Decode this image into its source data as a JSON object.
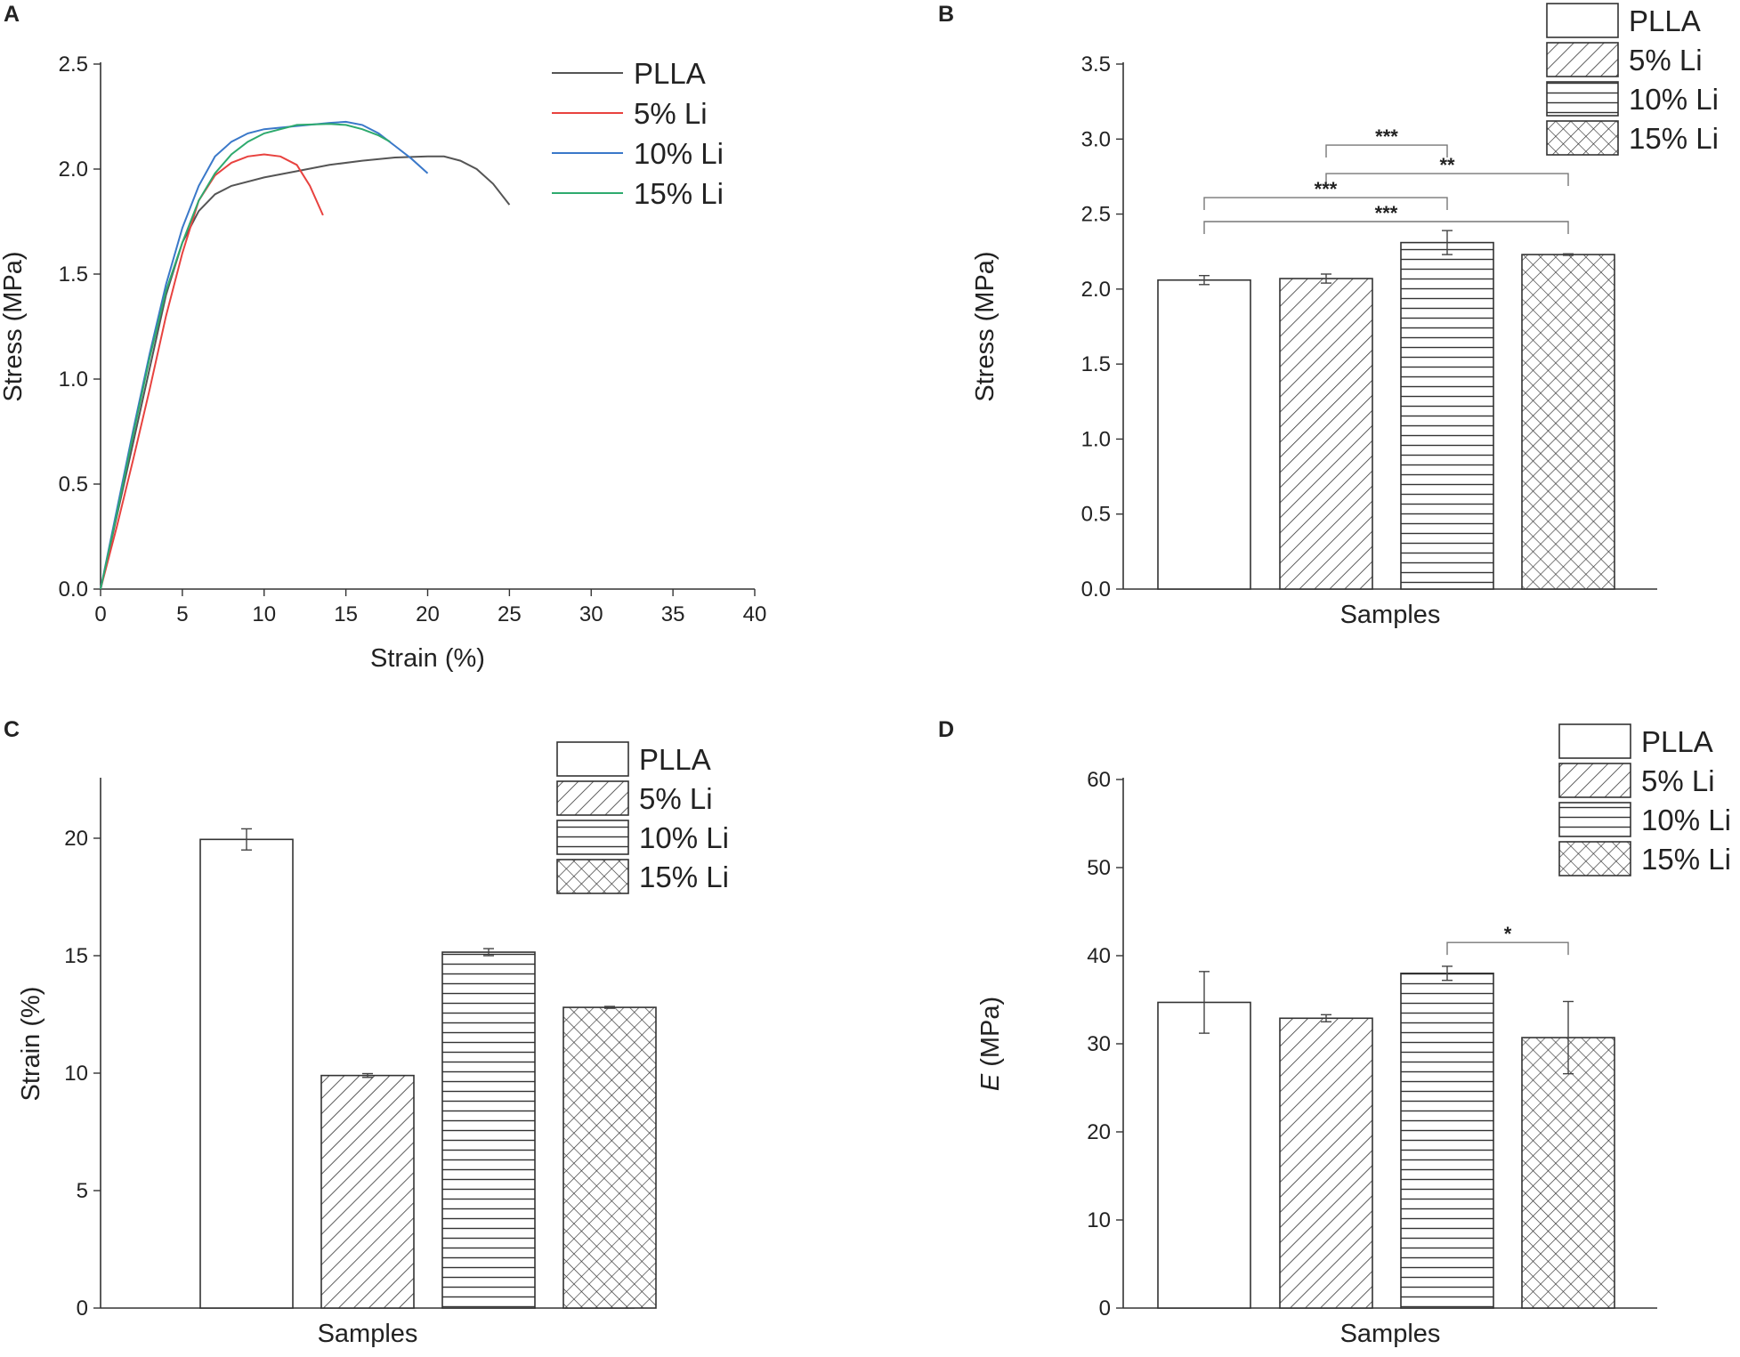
{
  "chart_data": [
    {
      "panel": "A",
      "type": "line",
      "xlabel": "Strain (%)",
      "ylabel": "Stress (MPa)",
      "xlim": [
        0,
        40
      ],
      "ylim": [
        0,
        2.5
      ],
      "xticks": [
        "0",
        "5",
        "10",
        "15",
        "20",
        "25",
        "30",
        "35",
        "40"
      ],
      "yticks": [
        "0.0",
        "0.5",
        "1.0",
        "1.5",
        "2.0",
        "2.5"
      ],
      "legend_position": "top-right",
      "series": [
        {
          "name": "PLLA",
          "color": "#555555",
          "points": [
            [
              0,
              0
            ],
            [
              1,
              0.35
            ],
            [
              2,
              0.7
            ],
            [
              3,
              1.05
            ],
            [
              4,
              1.4
            ],
            [
              5,
              1.65
            ],
            [
              6,
              1.8
            ],
            [
              7,
              1.88
            ],
            [
              8,
              1.92
            ],
            [
              10,
              1.96
            ],
            [
              12,
              1.99
            ],
            [
              14,
              2.02
            ],
            [
              16,
              2.04
            ],
            [
              18,
              2.055
            ],
            [
              20,
              2.06
            ],
            [
              21,
              2.06
            ],
            [
              22,
              2.04
            ],
            [
              23,
              2.0
            ],
            [
              24,
              1.93
            ],
            [
              25,
              1.83
            ]
          ]
        },
        {
          "name": "5% Li",
          "color": "#e8423f",
          "points": [
            [
              0,
              0
            ],
            [
              1,
              0.3
            ],
            [
              2,
              0.62
            ],
            [
              3,
              0.95
            ],
            [
              4,
              1.3
            ],
            [
              5,
              1.6
            ],
            [
              6,
              1.85
            ],
            [
              7,
              1.97
            ],
            [
              8,
              2.03
            ],
            [
              9,
              2.06
            ],
            [
              10,
              2.07
            ],
            [
              11,
              2.06
            ],
            [
              12,
              2.02
            ],
            [
              12.8,
              1.92
            ],
            [
              13.6,
              1.78
            ]
          ]
        },
        {
          "name": "10% Li",
          "color": "#3a78c9",
          "points": [
            [
              0,
              0
            ],
            [
              1,
              0.38
            ],
            [
              2,
              0.76
            ],
            [
              3,
              1.12
            ],
            [
              4,
              1.45
            ],
            [
              5,
              1.72
            ],
            [
              6,
              1.92
            ],
            [
              7,
              2.06
            ],
            [
              8,
              2.13
            ],
            [
              9,
              2.17
            ],
            [
              10,
              2.19
            ],
            [
              12,
              2.205
            ],
            [
              14,
              2.22
            ],
            [
              15,
              2.225
            ],
            [
              16,
              2.21
            ],
            [
              17,
              2.17
            ],
            [
              18,
              2.11
            ],
            [
              19,
              2.05
            ],
            [
              20,
              1.98
            ]
          ]
        },
        {
          "name": "15% Li",
          "color": "#2eaa6e",
          "points": [
            [
              0,
              0
            ],
            [
              1,
              0.36
            ],
            [
              2,
              0.74
            ],
            [
              3,
              1.1
            ],
            [
              4,
              1.42
            ],
            [
              5,
              1.65
            ],
            [
              6,
              1.85
            ],
            [
              7,
              1.98
            ],
            [
              8,
              2.07
            ],
            [
              9,
              2.13
            ],
            [
              10,
              2.17
            ],
            [
              12,
              2.21
            ],
            [
              14,
              2.215
            ],
            [
              15,
              2.21
            ],
            [
              16,
              2.19
            ],
            [
              17,
              2.16
            ],
            [
              17.7,
              2.13
            ]
          ]
        }
      ]
    },
    {
      "panel": "B",
      "type": "bar",
      "xlabel": "Samples",
      "ylabel": "Stress (MPa)",
      "ylim": [
        0,
        3.5
      ],
      "yticks": [
        "0.0",
        "0.5",
        "1.0",
        "1.5",
        "2.0",
        "2.5",
        "3.0",
        "3.5"
      ],
      "legend_position": "top-right",
      "categories": [
        "PLLA",
        "5% Li",
        "10% Li",
        "15% Li"
      ],
      "values": [
        2.06,
        2.07,
        2.31,
        2.23
      ],
      "errors": [
        0.03,
        0.03,
        0.08,
        0.005
      ],
      "significance": [
        {
          "from": 1,
          "to": 2,
          "y": 2.96,
          "label": "***"
        },
        {
          "from": 1,
          "to": 3,
          "y": 2.77,
          "label": "**"
        },
        {
          "from": 0,
          "to": 2,
          "y": 2.61,
          "label": "***"
        },
        {
          "from": 0,
          "to": 3,
          "y": 2.45,
          "label": "***"
        }
      ]
    },
    {
      "panel": "C",
      "type": "bar",
      "xlabel": "Samples",
      "ylabel": "Strain (%)",
      "ylim": [
        0,
        22.5
      ],
      "yticks": [
        "0",
        "5",
        "10",
        "15",
        "20"
      ],
      "legend_position": "top-right",
      "categories": [
        "PLLA",
        "5% Li",
        "10% Li",
        "15% Li"
      ],
      "values": [
        19.95,
        9.9,
        15.15,
        12.8
      ],
      "errors": [
        0.45,
        0.08,
        0.15,
        0.04
      ],
      "significance": []
    },
    {
      "panel": "D",
      "type": "bar",
      "xlabel": "Samples",
      "ylabel_italic": "E",
      "ylabel": " (MPa)",
      "ylim": [
        0,
        60
      ],
      "yticks": [
        "0",
        "10",
        "20",
        "30",
        "40",
        "50",
        "60"
      ],
      "legend_position": "top-right",
      "categories": [
        "PLLA",
        "5% Li",
        "10% Li",
        "15% Li"
      ],
      "values": [
        34.7,
        32.9,
        38.0,
        30.7
      ],
      "errors": [
        3.5,
        0.4,
        0.8,
        4.1
      ],
      "significance": [
        {
          "from": 2,
          "to": 3,
          "y": 41.5,
          "label": "*"
        }
      ]
    }
  ]
}
